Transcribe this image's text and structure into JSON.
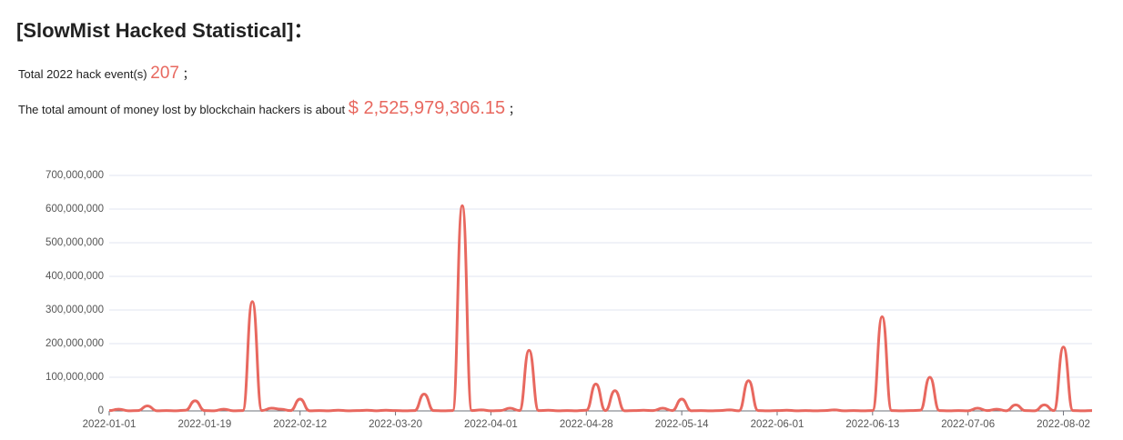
{
  "header": {
    "title": "[SlowMist Hacked Statistical]：",
    "events_label": "Total 2022 hack event(s)",
    "events": 207,
    "separator": "；",
    "loss_label": "The total amount of money lost by blockchain hackers is about",
    "loss": "$ 2,525,979,306.15"
  },
  "chart_data": {
    "type": "line",
    "color": "#e8685f",
    "grid": true,
    "smooth": true,
    "ylim": [
      0,
      700000000
    ],
    "yticks": [
      0,
      {
        "value": 100000000,
        "label": "100,000,000"
      },
      {
        "value": 200000000,
        "label": "200,000,000"
      },
      {
        "value": 300000000,
        "label": "300,000,000"
      },
      {
        "value": 400000000,
        "label": "400,000,000"
      },
      {
        "value": 500000000,
        "label": "500,000,000"
      },
      {
        "value": 600000000,
        "label": "600,000,000"
      },
      {
        "value": 700000000,
        "label": "700,000,000"
      }
    ],
    "categories": [
      "2022-01-01",
      null,
      null,
      null,
      null,
      null,
      null,
      null,
      null,
      null,
      "2022-01-19",
      null,
      null,
      null,
      null,
      null,
      null,
      null,
      null,
      null,
      "2022-02-12",
      null,
      null,
      null,
      null,
      null,
      null,
      null,
      null,
      null,
      "2022-03-20",
      null,
      null,
      null,
      null,
      null,
      null,
      null,
      null,
      null,
      "2022-04-01",
      null,
      null,
      null,
      null,
      null,
      null,
      null,
      null,
      null,
      "2022-04-28",
      null,
      null,
      null,
      null,
      null,
      null,
      null,
      null,
      null,
      "2022-05-14",
      null,
      null,
      null,
      null,
      null,
      null,
      null,
      null,
      null,
      "2022-06-01",
      null,
      null,
      null,
      null,
      null,
      null,
      null,
      null,
      null,
      "2022-06-13",
      null,
      null,
      null,
      null,
      null,
      null,
      null,
      null,
      null,
      "2022-07-06",
      null,
      null,
      null,
      null,
      null,
      null,
      null,
      null,
      null,
      "2022-08-02",
      null,
      null,
      null
    ],
    "values": [
      1000000,
      5000000,
      500000,
      1000000,
      15000000,
      500000,
      1000000,
      500000,
      2000000,
      30000000,
      1000000,
      500000,
      5000000,
      500000,
      1000000,
      325000000,
      1000000,
      8000000,
      5000000,
      1000000,
      35000000,
      500000,
      1000000,
      500000,
      2000000,
      500000,
      1000000,
      2000000,
      500000,
      2000000,
      1000000,
      500000,
      1000000,
      50000000,
      1000000,
      500000,
      1000000,
      610000000,
      1000000,
      3000000,
      500000,
      1000000,
      8000000,
      1000000,
      180000000,
      1000000,
      2000000,
      500000,
      1000000,
      500000,
      2000000,
      80000000,
      1000000,
      60000000,
      500000,
      1000000,
      2000000,
      1000000,
      8000000,
      1000000,
      35000000,
      500000,
      1000000,
      500000,
      1000000,
      3000000,
      500000,
      90000000,
      1000000,
      500000,
      1000000,
      2000000,
      500000,
      1000000,
      500000,
      1000000,
      3000000,
      500000,
      1000000,
      500000,
      1000000,
      280000000,
      1000000,
      500000,
      1000000,
      2000000,
      100000000,
      1000000,
      500000,
      1000000,
      500000,
      8000000,
      1000000,
      5000000,
      500000,
      18000000,
      1000000,
      500000,
      18000000,
      1000000,
      190000000,
      1000000,
      500000,
      1000000
    ]
  }
}
